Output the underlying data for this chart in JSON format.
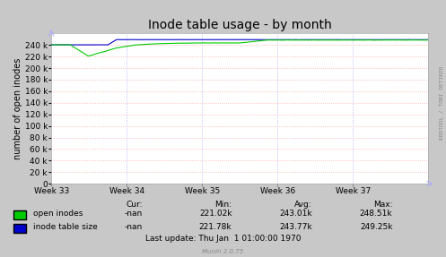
{
  "title": "Inode table usage - by month",
  "ylabel": "number of open inodes",
  "background_color": "#c8c8c8",
  "plot_background_color": "#ffffff",
  "grid_color_h": "#ffaaaa",
  "grid_color_v": "#aaaaff",
  "ylim": [
    0,
    260000
  ],
  "yticks": [
    0,
    20000,
    40000,
    60000,
    80000,
    100000,
    120000,
    140000,
    160000,
    180000,
    200000,
    220000,
    240000
  ],
  "xtick_labels": [
    "Week 33",
    "Week 34",
    "Week 35",
    "Week 36",
    "Week 37"
  ],
  "line1_color": "#00cc00",
  "line2_color": "#0000cc",
  "footer_text": "Munin 2.0.75",
  "table_header": [
    "Cur:",
    "Min:",
    "Avg:",
    "Max:"
  ],
  "table_row1": [
    "open inodes",
    "-nan",
    "221.02k",
    "243.01k",
    "248.51k"
  ],
  "table_row2": [
    "inode table size",
    "-nan",
    "221.78k",
    "243.77k",
    "249.25k"
  ],
  "last_update": "Last update: Thu Jan  1 01:00:00 1970",
  "rrdtool_label": "RRDTOOL / TOBI OETIKER",
  "title_fontsize": 10,
  "axis_fontsize": 7,
  "tick_fontsize": 6.5,
  "table_fontsize": 6.5
}
